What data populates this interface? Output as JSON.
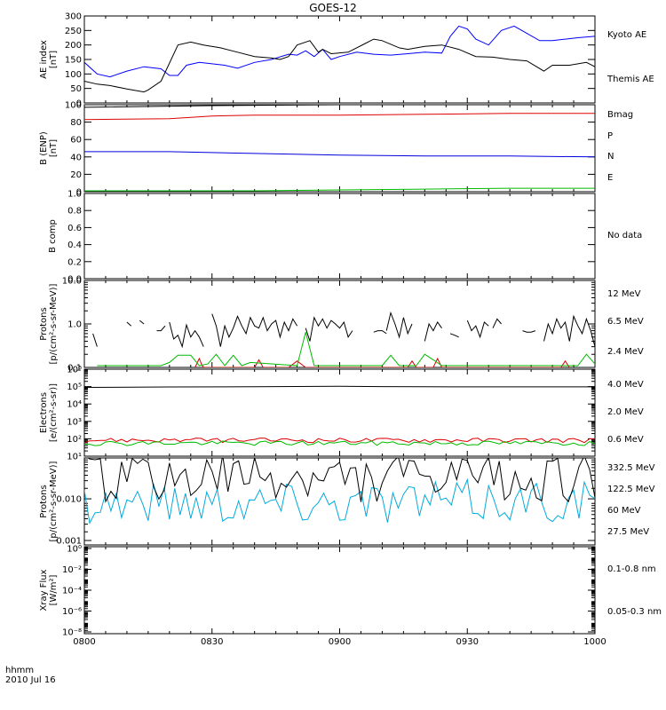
{
  "title": "GOES-12",
  "footer": {
    "line1": "hhmm",
    "line2": "2010 Jul 16"
  },
  "x_ticks": [
    "0800",
    "0830",
    "0900",
    "0930",
    "1000"
  ],
  "chart_data": [
    {
      "type": "line",
      "panel": "ae",
      "ylabel": [
        "AE index",
        "[nT]"
      ],
      "ylim": [
        0,
        300
      ],
      "yticks": [
        "0",
        "50",
        "100",
        "150",
        "200",
        "250",
        "300"
      ],
      "x_range_minutes": [
        0,
        120
      ],
      "series": [
        {
          "name": "Kyoto AE",
          "color": "#0000ff",
          "x": [
            0,
            3,
            6,
            10,
            14,
            18,
            20,
            22,
            24,
            27,
            30,
            33,
            36,
            40,
            44,
            48,
            50,
            52,
            54,
            56,
            58,
            60,
            64,
            68,
            72,
            76,
            80,
            84,
            86,
            88,
            90,
            92,
            95,
            98,
            101,
            104,
            107,
            110,
            113,
            116,
            120
          ],
          "y": [
            140,
            100,
            90,
            110,
            125,
            118,
            95,
            95,
            130,
            140,
            135,
            130,
            120,
            140,
            150,
            168,
            165,
            180,
            160,
            185,
            150,
            160,
            175,
            168,
            165,
            170,
            175,
            172,
            230,
            265,
            255,
            220,
            200,
            250,
            265,
            240,
            215,
            215,
            220,
            225,
            230
          ]
        },
        {
          "name": "Themis AE",
          "color": "#000000",
          "x": [
            0,
            3,
            6,
            10,
            14,
            15,
            18,
            22,
            25,
            28,
            32,
            36,
            40,
            44,
            46,
            48,
            50,
            53,
            55,
            56,
            58,
            62,
            66,
            68,
            70,
            74,
            76,
            80,
            84,
            88,
            92,
            96,
            100,
            104,
            108,
            110,
            114,
            118,
            120
          ],
          "y": [
            75,
            65,
            60,
            48,
            38,
            45,
            75,
            200,
            210,
            200,
            190,
            175,
            160,
            155,
            150,
            160,
            200,
            215,
            175,
            185,
            170,
            175,
            205,
            220,
            215,
            190,
            185,
            195,
            200,
            185,
            160,
            158,
            150,
            145,
            110,
            130,
            130,
            140,
            125
          ]
        }
      ]
    },
    {
      "type": "line",
      "panel": "benp",
      "ylabel": [
        "B (ENP)",
        "[nT]"
      ],
      "ylim": [
        0,
        100
      ],
      "yticks": [
        "0",
        "20",
        "40",
        "60",
        "80",
        "100"
      ],
      "series": [
        {
          "name": "Bmag",
          "color": "#000000",
          "x": [
            0,
            30,
            60,
            90,
            120
          ],
          "y": [
            97,
            99,
            100,
            100,
            100
          ]
        },
        {
          "name": "P",
          "color": "#dd0000",
          "x": [
            0,
            20,
            30,
            40,
            60,
            80,
            100,
            120
          ],
          "y": [
            83,
            84,
            87,
            88,
            88,
            89,
            90,
            90
          ]
        },
        {
          "name": "N",
          "color": "#00bb00",
          "x": [
            0,
            20,
            40,
            60,
            80,
            100,
            120
          ],
          "y": [
            1,
            1,
            1,
            2,
            3,
            4,
            4
          ]
        },
        {
          "name": "E",
          "color": "#0000dd",
          "x": [
            0,
            20,
            30,
            40,
            60,
            80,
            100,
            120
          ],
          "y": [
            46,
            46,
            45,
            44,
            42,
            41,
            41,
            40
          ]
        }
      ]
    },
    {
      "type": "line",
      "panel": "bcomp",
      "ylabel": [
        "B comp"
      ],
      "ylim": [
        0,
        1
      ],
      "yticks": [
        "0.0",
        "0.2",
        "0.4",
        "0.6",
        "0.8",
        "1.0"
      ],
      "series": [],
      "note": "No data"
    },
    {
      "type": "line",
      "panel": "protons_low",
      "ylabel": [
        "Protons",
        "[p/(cm²-s-sr-MeV)]"
      ],
      "log": true,
      "ylim_exp": [
        -1,
        1
      ],
      "yticks": [
        "0.1",
        "1.0",
        "10.0"
      ],
      "series": [
        {
          "name": "12 MeV",
          "color": "#dd0000",
          "x": [
            26,
            27,
            27.5,
            28,
            40,
            41,
            42,
            48,
            50,
            52,
            76,
            77,
            78,
            82,
            83,
            84,
            112,
            113,
            114
          ],
          "y": [
            0.1,
            0.16,
            0.12,
            0.1,
            0.1,
            0.15,
            0.1,
            0.1,
            0.14,
            0.1,
            0.1,
            0.14,
            0.1,
            0.1,
            0.16,
            0.1,
            0.1,
            0.14,
            0.1
          ]
        },
        {
          "name": "6.5 MeV",
          "color": "#00bb00",
          "x": [
            3,
            10,
            18,
            20,
            22,
            25,
            27,
            29,
            31,
            33,
            35,
            37,
            39,
            50,
            52,
            54,
            58,
            62,
            66,
            70,
            72,
            74,
            78,
            80,
            82,
            84,
            86,
            88,
            116,
            118,
            120
          ],
          "y": [
            0.11,
            0.11,
            0.11,
            0.13,
            0.19,
            0.19,
            0.11,
            0.12,
            0.2,
            0.11,
            0.19,
            0.11,
            0.13,
            0.11,
            0.65,
            0.11,
            0.11,
            0.11,
            0.11,
            0.11,
            0.19,
            0.11,
            0.11,
            0.2,
            0.15,
            0.11,
            0.11,
            0.11,
            0.11,
            0.2,
            0.12
          ]
        },
        {
          "name": "2.4 MeV",
          "color": "#000000",
          "segments": [
            {
              "x": [
                2,
                3
              ],
              "y": [
                0.6,
                0.3
              ]
            },
            {
              "x": [
                10,
                11
              ],
              "y": [
                1.1,
                0.9
              ]
            },
            {
              "x": [
                13,
                14
              ],
              "y": [
                1.2,
                1.0
              ]
            },
            {
              "x": [
                17,
                18,
                19
              ],
              "y": [
                0.7,
                0.7,
                0.9
              ]
            },
            {
              "x": [
                20,
                21,
                22,
                23,
                24,
                25,
                26,
                27,
                28
              ],
              "y": [
                1.1,
                0.45,
                0.55,
                0.3,
                0.95,
                0.5,
                0.7,
                0.5,
                0.3
              ]
            },
            {
              "x": [
                30,
                31,
                32,
                33,
                34,
                35,
                36,
                37,
                38,
                39,
                40,
                41,
                42,
                43,
                44,
                45,
                46,
                47,
                48,
                49,
                50
              ],
              "y": [
                1.7,
                0.9,
                0.3,
                0.9,
                0.5,
                0.8,
                1.5,
                0.9,
                0.6,
                1.4,
                0.9,
                0.8,
                1.4,
                0.7,
                1.0,
                1.2,
                0.5,
                1.1,
                0.7,
                1.3,
                0.9
              ]
            },
            {
              "x": [
                52,
                53,
                54,
                55,
                56,
                57,
                58,
                59,
                60,
                61,
                62,
                63
              ],
              "y": [
                0.8,
                0.4,
                1.4,
                0.9,
                1.3,
                0.8,
                1.2,
                1.0,
                0.8,
                1.1,
                0.5,
                0.7
              ]
            },
            {
              "x": [
                68,
                69,
                70,
                71
              ],
              "y": [
                0.65,
                0.7,
                0.7,
                0.6
              ]
            },
            {
              "x": [
                71,
                72,
                73,
                74,
                75,
                76,
                77
              ],
              "y": [
                0.7,
                1.8,
                1.0,
                0.5,
                1.4,
                0.6,
                1.0
              ]
            },
            {
              "x": [
                80,
                81,
                82,
                83,
                84
              ],
              "y": [
                0.4,
                1.0,
                0.7,
                1.1,
                0.8
              ]
            },
            {
              "x": [
                86,
                87,
                88
              ],
              "y": [
                0.6,
                0.55,
                0.5
              ]
            },
            {
              "x": [
                90,
                91,
                92,
                93,
                94,
                95
              ],
              "y": [
                1.2,
                0.7,
                0.9,
                0.5,
                1.1,
                0.9
              ]
            },
            {
              "x": [
                96,
                97,
                98
              ],
              "y": [
                0.8,
                1.3,
                1.0
              ]
            },
            {
              "x": [
                103,
                104,
                105,
                106
              ],
              "y": [
                0.7,
                0.65,
                0.65,
                0.7
              ]
            },
            {
              "x": [
                108,
                109,
                110,
                111,
                112,
                113,
                114,
                115,
                116,
                117,
                118,
                119,
                120
              ],
              "y": [
                0.4,
                1.0,
                0.6,
                1.3,
                0.8,
                1.1,
                0.4,
                1.5,
                0.9,
                0.6,
                1.3,
                0.7,
                0.3
              ]
            }
          ]
        }
      ]
    },
    {
      "type": "line",
      "panel": "electrons",
      "ylabel": [
        "Electrons",
        "[e/(cm²-s-sr)]"
      ],
      "log": true,
      "ylim_exp": [
        1,
        6
      ],
      "yticks": [
        "10¹",
        "10²",
        "10³",
        "10⁴",
        "10⁵",
        "10⁶"
      ],
      "series": [
        {
          "name": "4.0 MeV",
          "color": "#dd0000",
          "pattern": "noise_red"
        },
        {
          "name": "2.0 MeV",
          "color": "#00bb00",
          "pattern": "noise_green"
        },
        {
          "name": "0.6 MeV",
          "color": "#000000",
          "x": [
            0,
            20,
            40,
            60,
            70,
            80,
            100,
            120
          ],
          "y": [
            90000,
            95000,
            98000,
            105000,
            100000,
            98000,
            97000,
            96000
          ]
        }
      ]
    },
    {
      "type": "line",
      "panel": "protons_high",
      "ylabel": [
        "Protons",
        "[p/(cm²-s-sr-MeV)]"
      ],
      "log": true,
      "ylim_exp": [
        -3,
        -1
      ],
      "yticks": [
        "0.001",
        "0.010"
      ],
      "series": [
        {
          "name": "332.5 MeV",
          "color": "#dd0000",
          "pattern": "none"
        },
        {
          "name": "122.5 MeV",
          "color": "#ffd700",
          "pattern": "none"
        },
        {
          "name": "60 MeV",
          "color": "#00aadd",
          "pattern": "noise_cyan"
        },
        {
          "name": "27.5 MeV",
          "color": "#000000",
          "pattern": "noise_black"
        }
      ]
    },
    {
      "type": "line",
      "panel": "xray",
      "ylabel": [
        "Xray Flux",
        "[W/m²]"
      ],
      "log": true,
      "ylim_exp": [
        -8,
        0
      ],
      "yticks": [
        "10⁻⁸",
        "10⁻⁶",
        "10⁻⁴",
        "10⁻²",
        "10⁰"
      ],
      "series": [
        {
          "name": "0.1-0.8 nm",
          "color": "#dd0000"
        },
        {
          "name": "0.05-0.3 nm",
          "color": "#0000dd"
        }
      ]
    }
  ]
}
